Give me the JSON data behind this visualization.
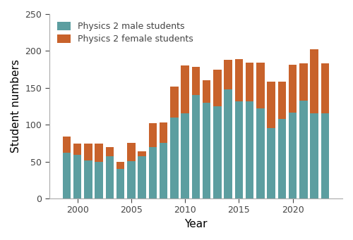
{
  "years": [
    1999,
    2000,
    2001,
    2002,
    2003,
    2004,
    2005,
    2006,
    2007,
    2008,
    2009,
    2010,
    2011,
    2012,
    2013,
    2014,
    2015,
    2016,
    2017,
    2018,
    2019,
    2020,
    2021,
    2022,
    2023
  ],
  "male": [
    62,
    59,
    52,
    50,
    57,
    40,
    51,
    57,
    70,
    75,
    110,
    115,
    140,
    130,
    125,
    148,
    132,
    132,
    122,
    95,
    108,
    116,
    133,
    115,
    115
  ],
  "female": [
    22,
    15,
    22,
    24,
    13,
    10,
    24,
    7,
    32,
    28,
    42,
    65,
    38,
    30,
    50,
    40,
    57,
    52,
    62,
    63,
    50,
    65,
    50,
    87,
    68
  ],
  "male_color": "#5c9ea0",
  "female_color": "#c8622b",
  "background_color": "#ffffff",
  "ylabel": "Student numbers",
  "xlabel": "Year",
  "ylim": [
    0,
    250
  ],
  "yticks": [
    0,
    50,
    100,
    150,
    200,
    250
  ],
  "legend_labels": [
    "Physics 2 male students",
    "Physics 2 female students"
  ],
  "bar_width": 0.75,
  "xticks": [
    2000,
    2005,
    2010,
    2015,
    2020
  ]
}
